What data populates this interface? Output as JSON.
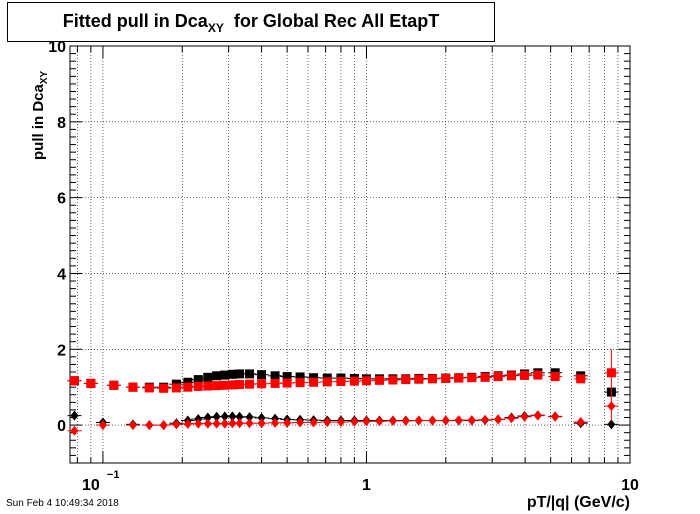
{
  "title": {
    "main": "Fitted pull in Dca",
    "sub": "XY",
    "rest": "for Global Rec All EtapT"
  },
  "footer": "Sun Feb  4 10:49:34 2018",
  "chart_data": {
    "type": "scatter",
    "x_scale": "log",
    "xlim": [
      0.075,
      10
    ],
    "ylim": [
      -1,
      10
    ],
    "xlabel": "pT/|q| (GeV/c)",
    "ylabel_main": "pull in Dca",
    "ylabel_sub": "XY",
    "x_tick_labels": [
      {
        "value": 0.1,
        "base": "10",
        "exp": "−1"
      },
      {
        "value": 1,
        "base": "1"
      },
      {
        "value": 10,
        "base": "10"
      }
    ],
    "y_ticks": [
      0,
      2,
      4,
      6,
      8,
      10
    ],
    "grid": true,
    "colors": {
      "black": "#000000",
      "red": "#ff0000",
      "red_edge": "#cc0000"
    },
    "series": [
      {
        "marker": "square",
        "color": "#000000",
        "points": [
          [
            0.078,
            1.17
          ],
          [
            0.09,
            1.1
          ],
          [
            0.11,
            1.05
          ],
          [
            0.13,
            1.0
          ],
          [
            0.15,
            1.0
          ],
          [
            0.17,
            1.0
          ],
          [
            0.19,
            1.08
          ],
          [
            0.21,
            1.13
          ],
          [
            0.23,
            1.2
          ],
          [
            0.25,
            1.26
          ],
          [
            0.27,
            1.3
          ],
          [
            0.29,
            1.32
          ],
          [
            0.31,
            1.34
          ],
          [
            0.33,
            1.35
          ],
          [
            0.36,
            1.35
          ],
          [
            0.4,
            1.33
          ],
          [
            0.45,
            1.3
          ],
          [
            0.5,
            1.28
          ],
          [
            0.56,
            1.27
          ],
          [
            0.63,
            1.25
          ],
          [
            0.71,
            1.24
          ],
          [
            0.8,
            1.24
          ],
          [
            0.9,
            1.23
          ],
          [
            1.0,
            1.22
          ],
          [
            1.12,
            1.22
          ],
          [
            1.26,
            1.22
          ],
          [
            1.41,
            1.22
          ],
          [
            1.58,
            1.23
          ],
          [
            1.78,
            1.23
          ],
          [
            2.0,
            1.24
          ],
          [
            2.24,
            1.25
          ],
          [
            2.51,
            1.26
          ],
          [
            2.82,
            1.28
          ],
          [
            3.16,
            1.3
          ],
          [
            3.55,
            1.32
          ],
          [
            3.98,
            1.35
          ],
          [
            4.47,
            1.38
          ],
          [
            5.2,
            1.38
          ],
          [
            6.5,
            1.3
          ],
          [
            8.5,
            0.87
          ]
        ]
      },
      {
        "marker": "square",
        "color": "#ff0000",
        "points": [
          [
            0.078,
            1.17
          ],
          [
            0.09,
            1.1
          ],
          [
            0.11,
            1.05
          ],
          [
            0.13,
            1.0
          ],
          [
            0.15,
            0.98
          ],
          [
            0.17,
            0.97
          ],
          [
            0.19,
            0.98
          ],
          [
            0.21,
            1.0
          ],
          [
            0.23,
            1.02
          ],
          [
            0.25,
            1.03
          ],
          [
            0.27,
            1.04
          ],
          [
            0.29,
            1.05
          ],
          [
            0.31,
            1.06
          ],
          [
            0.33,
            1.07
          ],
          [
            0.36,
            1.08
          ],
          [
            0.4,
            1.09
          ],
          [
            0.45,
            1.1
          ],
          [
            0.5,
            1.11
          ],
          [
            0.56,
            1.12
          ],
          [
            0.63,
            1.13
          ],
          [
            0.71,
            1.14
          ],
          [
            0.8,
            1.15
          ],
          [
            0.9,
            1.16
          ],
          [
            1.0,
            1.17
          ],
          [
            1.12,
            1.18
          ],
          [
            1.26,
            1.19
          ],
          [
            1.41,
            1.2
          ],
          [
            1.58,
            1.21
          ],
          [
            1.78,
            1.22
          ],
          [
            2.0,
            1.23
          ],
          [
            2.24,
            1.24
          ],
          [
            2.51,
            1.25
          ],
          [
            2.82,
            1.26
          ],
          [
            3.16,
            1.28
          ],
          [
            3.55,
            1.3
          ],
          [
            3.98,
            1.31
          ],
          [
            4.47,
            1.32
          ],
          [
            5.2,
            1.28
          ],
          [
            6.5,
            1.22
          ],
          [
            8.5,
            1.38
          ]
        ],
        "error_bars": [
          {
            "x": 8.5,
            "lo": 0.8,
            "hi": 2.0
          }
        ]
      },
      {
        "marker": "diamond",
        "color": "#000000",
        "points": [
          [
            0.078,
            0.25
          ],
          [
            0.1,
            0.07
          ],
          [
            0.13,
            0.02
          ],
          [
            0.15,
            0.0
          ],
          [
            0.17,
            0.0
          ],
          [
            0.19,
            0.05
          ],
          [
            0.21,
            0.12
          ],
          [
            0.23,
            0.16
          ],
          [
            0.25,
            0.2
          ],
          [
            0.27,
            0.22
          ],
          [
            0.29,
            0.23
          ],
          [
            0.31,
            0.23
          ],
          [
            0.33,
            0.22
          ],
          [
            0.36,
            0.21
          ],
          [
            0.4,
            0.19
          ],
          [
            0.45,
            0.17
          ],
          [
            0.5,
            0.15
          ],
          [
            0.56,
            0.14
          ],
          [
            0.63,
            0.13
          ],
          [
            0.71,
            0.12
          ],
          [
            0.8,
            0.12
          ],
          [
            0.9,
            0.12
          ],
          [
            1.0,
            0.12
          ],
          [
            1.12,
            0.12
          ],
          [
            1.26,
            0.12
          ],
          [
            1.41,
            0.12
          ],
          [
            1.58,
            0.12
          ],
          [
            1.78,
            0.12
          ],
          [
            2.0,
            0.12
          ],
          [
            2.24,
            0.12
          ],
          [
            2.51,
            0.12
          ],
          [
            2.82,
            0.13
          ],
          [
            3.16,
            0.15
          ],
          [
            3.55,
            0.2
          ],
          [
            3.98,
            0.24
          ],
          [
            4.47,
            0.26
          ],
          [
            5.2,
            0.23
          ],
          [
            6.5,
            0.05
          ],
          [
            8.5,
            0.02
          ]
        ]
      },
      {
        "marker": "diamond",
        "color": "#ff0000",
        "points": [
          [
            0.078,
            -0.15
          ],
          [
            0.1,
            0.0
          ],
          [
            0.13,
            0.0
          ],
          [
            0.15,
            0.0
          ],
          [
            0.17,
            0.0
          ],
          [
            0.19,
            0.02
          ],
          [
            0.21,
            0.03
          ],
          [
            0.23,
            0.04
          ],
          [
            0.25,
            0.04
          ],
          [
            0.27,
            0.04
          ],
          [
            0.29,
            0.04
          ],
          [
            0.31,
            0.05
          ],
          [
            0.33,
            0.05
          ],
          [
            0.36,
            0.05
          ],
          [
            0.4,
            0.05
          ],
          [
            0.45,
            0.06
          ],
          [
            0.5,
            0.06
          ],
          [
            0.56,
            0.07
          ],
          [
            0.63,
            0.07
          ],
          [
            0.71,
            0.08
          ],
          [
            0.8,
            0.08
          ],
          [
            0.9,
            0.09
          ],
          [
            1.0,
            0.1
          ],
          [
            1.12,
            0.1
          ],
          [
            1.26,
            0.11
          ],
          [
            1.41,
            0.11
          ],
          [
            1.58,
            0.12
          ],
          [
            1.78,
            0.12
          ],
          [
            2.0,
            0.12
          ],
          [
            2.24,
            0.13
          ],
          [
            2.51,
            0.13
          ],
          [
            2.82,
            0.14
          ],
          [
            3.16,
            0.15
          ],
          [
            3.55,
            0.18
          ],
          [
            3.98,
            0.22
          ],
          [
            4.47,
            0.25
          ],
          [
            5.2,
            0.22
          ],
          [
            6.5,
            0.08
          ],
          [
            8.5,
            0.5
          ]
        ],
        "error_bars": [
          {
            "x": 8.5,
            "lo": 0.1,
            "hi": 0.9
          }
        ]
      }
    ]
  }
}
